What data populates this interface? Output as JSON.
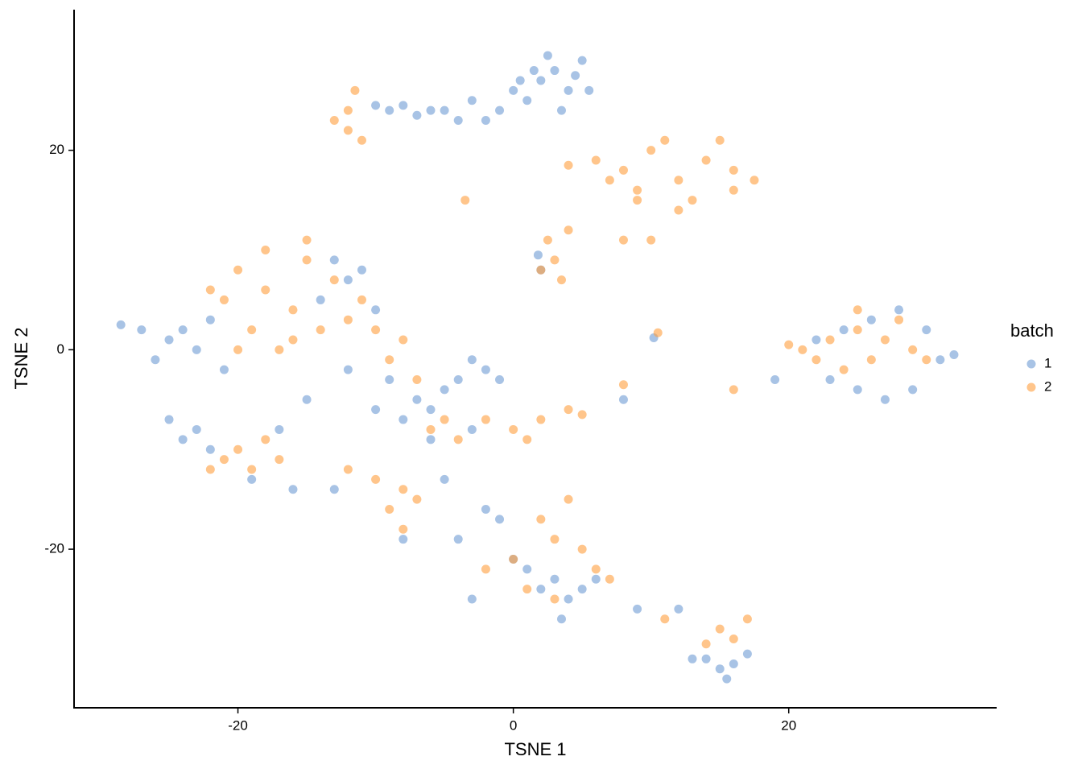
{
  "chart_data": {
    "type": "scatter",
    "x_label": "TSNE 1",
    "y_label": "TSNE 2",
    "legend_title": "batch",
    "legend": "right",
    "xlim": [
      -31.9,
      35.1
    ],
    "xticks": [
      -20,
      0,
      20
    ],
    "ylim": [
      -35.9,
      34.1
    ],
    "yticks": [
      -20,
      0,
      20
    ],
    "series": [
      {
        "name": "1",
        "color": "#6e9bd4",
        "x": [
          2,
          3,
          4,
          1,
          5,
          2.5,
          3.5,
          0,
          -1,
          -2,
          -3,
          -4,
          -5,
          -8,
          -9,
          -10,
          -7,
          -6,
          4.5,
          5.5,
          1.5,
          0.5,
          -25,
          -24,
          -23,
          -26,
          -22,
          -27,
          -21,
          -28.5,
          -24,
          -23,
          -22,
          -25,
          -7,
          -6,
          -5,
          -8,
          -4,
          -3,
          -2,
          -1,
          -3,
          -6,
          -9,
          -10,
          -12,
          -14,
          -12,
          -11,
          -13,
          -10,
          -15,
          -17,
          -19,
          -16,
          -13,
          1,
          2,
          3,
          4,
          5,
          6,
          0,
          -1,
          -2,
          -4,
          -3,
          3.5,
          14,
          15,
          16,
          17,
          15.5,
          13,
          9,
          12,
          23,
          25,
          27,
          29,
          31,
          26,
          28,
          24,
          22,
          30,
          32,
          1.8,
          2,
          19,
          10.2,
          8,
          -5,
          -8
        ],
        "values": [
          27,
          28,
          26,
          25,
          29,
          29.5,
          24,
          26,
          24,
          23,
          25,
          23,
          24,
          24.5,
          24,
          24.5,
          23.5,
          24,
          27.5,
          26,
          28,
          27,
          1,
          2,
          0,
          -1,
          3,
          2,
          -2,
          2.5,
          -9,
          -8,
          -10,
          -7,
          -5,
          -6,
          -4,
          -7,
          -3,
          -8,
          -2,
          -3,
          -1,
          -9,
          -3,
          -6,
          -2,
          5,
          7,
          8,
          9,
          4,
          -5,
          -8,
          -13,
          -14,
          -14,
          -22,
          -24,
          -23,
          -25,
          -24,
          -23,
          -21,
          -17,
          -16,
          -19,
          -25,
          -27,
          -31,
          -32,
          -31.5,
          -30.5,
          -33,
          -31,
          -26,
          -26,
          -3,
          -4,
          -5,
          -4,
          -1,
          3,
          4,
          2,
          1,
          2,
          -0.5,
          9.5,
          8,
          -3,
          1.2,
          -5,
          -13,
          -19
        ]
      },
      {
        "name": "2",
        "color": "#ff9e3d",
        "x": [
          -20,
          -18,
          -16,
          -14,
          -12,
          -10,
          -8,
          -19,
          -17,
          -15,
          -13,
          -21,
          -16,
          -18,
          -11,
          -9,
          -22,
          -15,
          -7,
          -20,
          6,
          8,
          10,
          12,
          14,
          16,
          17.5,
          13,
          9,
          7,
          11,
          15,
          4,
          12,
          8,
          10,
          9,
          16,
          21,
          23,
          25,
          27,
          29,
          30,
          26,
          24,
          22,
          28,
          25,
          20,
          -12,
          -11.5,
          -12,
          -11,
          -13,
          2.5,
          3,
          2,
          4,
          3.5,
          -20,
          -21,
          -19,
          -18,
          -17,
          -22,
          -8,
          -9,
          -7,
          -10,
          -8,
          -6,
          -4,
          -2,
          0,
          2,
          4,
          5,
          -5,
          1,
          2,
          3,
          5,
          6,
          7,
          0,
          -2,
          1,
          4,
          3,
          15,
          16,
          17,
          14,
          11,
          -3.5,
          10.5,
          16,
          8,
          -12
        ],
        "values": [
          8,
          6,
          4,
          2,
          3,
          2,
          1,
          2,
          0,
          9,
          7,
          5,
          1,
          10,
          5,
          -1,
          6,
          11,
          -3,
          0,
          19,
          18,
          20,
          17,
          19,
          18,
          17,
          15,
          16,
          17,
          21,
          21,
          18.5,
          14,
          11,
          11,
          15,
          16,
          0,
          1,
          2,
          1,
          0,
          -1,
          -1,
          -2,
          -1,
          3,
          4,
          0.5,
          22,
          26,
          24,
          21,
          23,
          11,
          9,
          8,
          12,
          7,
          -10,
          -11,
          -12,
          -9,
          -11,
          -12,
          -14,
          -16,
          -15,
          -13,
          -18,
          -8,
          -9,
          -7,
          -8,
          -7,
          -6,
          -6.5,
          -7,
          -9,
          -17,
          -19,
          -20,
          -22,
          -23,
          -21,
          -22,
          -24,
          -15,
          -25,
          -28,
          -29,
          -27,
          -29.5,
          -27,
          15,
          1.7,
          -4,
          -3.5,
          -12
        ]
      }
    ]
  }
}
